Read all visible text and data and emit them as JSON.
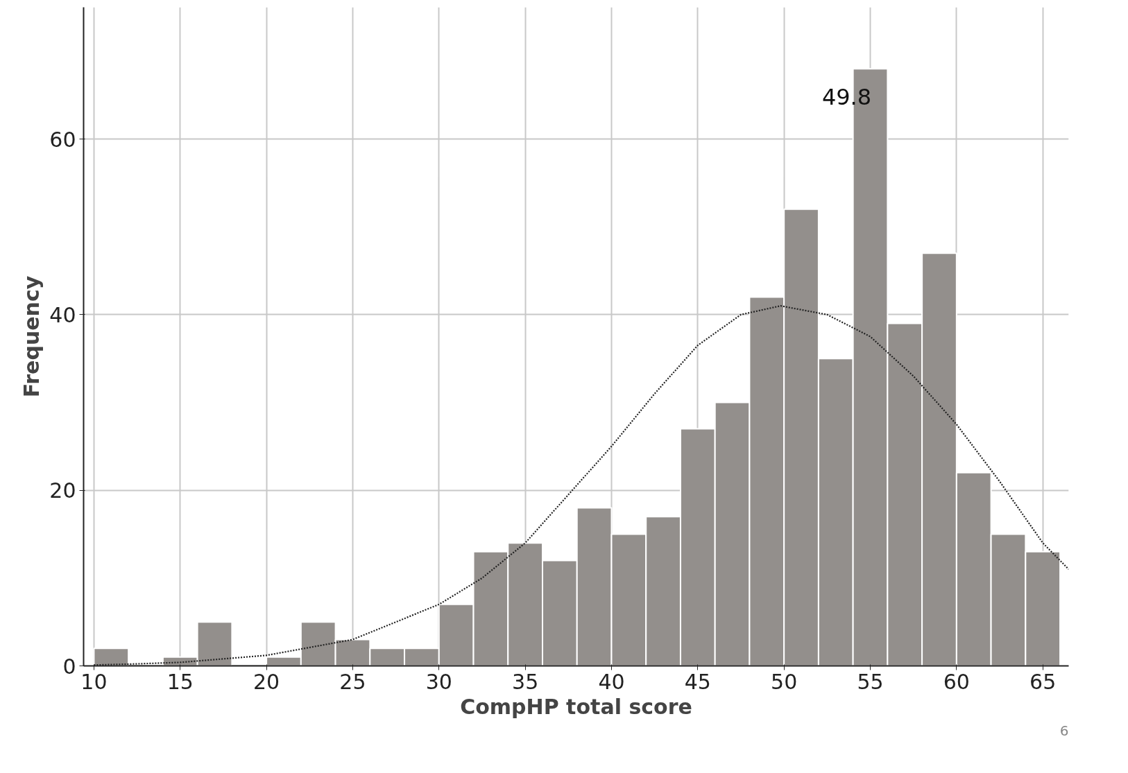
{
  "chart_data": {
    "type": "histogram",
    "xlabel": "CompHP total score",
    "ylabel": "Frequency",
    "bins": [
      10,
      12,
      14,
      16,
      18,
      20,
      22,
      24,
      26,
      28,
      30,
      32,
      34,
      36,
      38,
      40,
      42,
      44,
      46,
      48,
      50,
      52,
      54,
      56,
      58,
      60,
      62,
      64,
      66
    ],
    "values": [
      2,
      0,
      1,
      5,
      0,
      1,
      5,
      3,
      2,
      2,
      7,
      13,
      14,
      12,
      18,
      15,
      17,
      27,
      30,
      42,
      52,
      35,
      68,
      39,
      47,
      22,
      15,
      13
    ],
    "color": "#938f8c",
    "series": [
      {
        "type": "line",
        "line_style": "dotted",
        "color": "#222222",
        "x": [
          10,
          12,
          15,
          20,
          25,
          30,
          32.5,
          35,
          37.5,
          40,
          42.5,
          45,
          47.5,
          49.8,
          52.5,
          55,
          57.5,
          60,
          62.5,
          65,
          66.5
        ],
        "values": [
          0.1,
          0.2,
          0.4,
          1.2,
          3,
          7,
          10,
          14,
          19.5,
          25,
          31,
          36.5,
          40,
          41,
          40,
          37.5,
          33,
          27.5,
          21,
          14,
          11
        ]
      }
    ],
    "xlim": [
      9.4,
      66.5
    ],
    "ylim": [
      0,
      75
    ],
    "xticks": [
      10,
      15,
      20,
      25,
      30,
      35,
      40,
      45,
      50,
      55,
      60,
      65
    ],
    "yticks": [
      0,
      20,
      40,
      60
    ],
    "grid": true,
    "annotations": [
      "49.8",
      "6"
    ]
  }
}
